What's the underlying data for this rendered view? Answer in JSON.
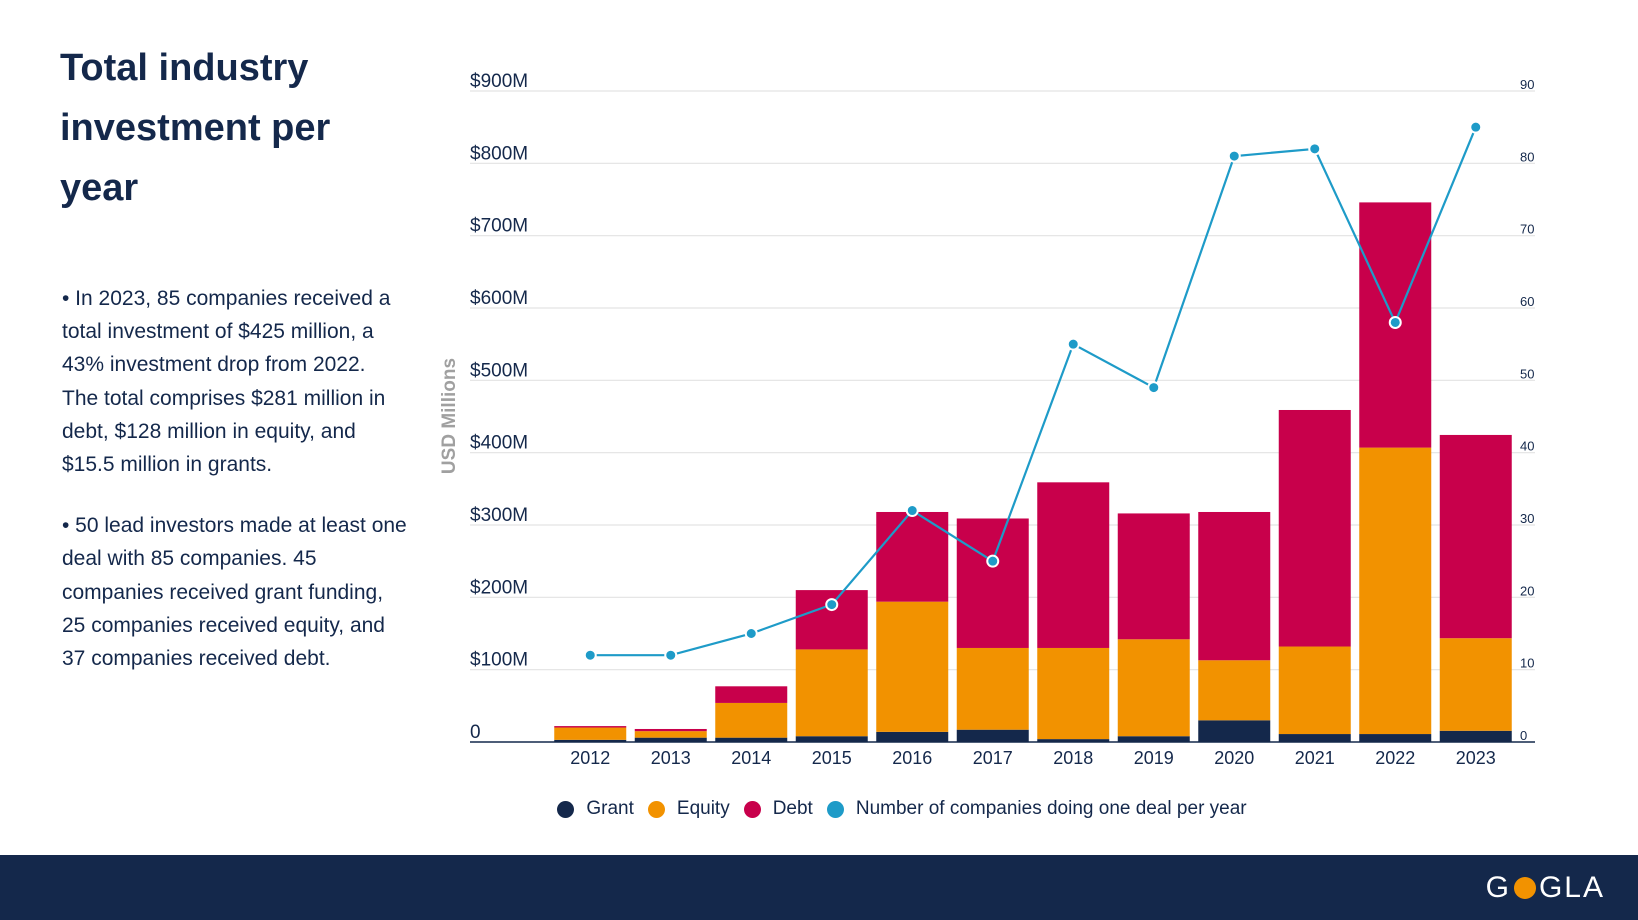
{
  "title": "Total industry investment per year",
  "bullets": [
    "• In 2023, 85 companies received a total investment of $425 million, a 43% investment drop from 2022. The total comprises $281 million in debt, $128 million in equity, and $15.5 million in grants.",
    "• 50 lead investors made at least one deal with 85 companies. 45 companies received grant funding, 25 companies received equity, and 37 companies received debt."
  ],
  "footer": {
    "logo_left": "G",
    "logo_right": "GLA",
    "logo_circle_color": "#f29200"
  },
  "chart_data": {
    "type": "bar",
    "stacked": true,
    "categories": [
      "2012",
      "2013",
      "2014",
      "2015",
      "2016",
      "2017",
      "2018",
      "2019",
      "2020",
      "2021",
      "2022",
      "2023"
    ],
    "series": [
      {
        "name": "Grant",
        "color": "#14284b",
        "axis": "left",
        "values": [
          3,
          6,
          6,
          8,
          14,
          17,
          4,
          8,
          30,
          11,
          11,
          15.5
        ]
      },
      {
        "name": "Equity",
        "color": "#f29200",
        "axis": "left",
        "values": [
          17,
          9,
          48,
          120,
          180,
          113,
          126,
          134,
          83,
          121,
          396,
          128
        ]
      },
      {
        "name": "Debt",
        "color": "#c8004b",
        "axis": "left",
        "values": [
          2,
          3,
          23,
          82,
          124,
          179,
          229,
          174,
          205,
          327,
          339,
          281
        ]
      },
      {
        "name": "Number of companies doing one deal per year",
        "type": "line",
        "color": "#1e9bc8",
        "axis": "right",
        "values": [
          12,
          12,
          15,
          19,
          32,
          25,
          55,
          49,
          81,
          82,
          58,
          85
        ]
      }
    ],
    "ylabel": "USD Millions",
    "ylim": [
      0,
      900
    ],
    "y_ticks": [
      0,
      100,
      200,
      300,
      400,
      500,
      600,
      700,
      800,
      900
    ],
    "y_tick_labels": [
      "0",
      "$100M",
      "$200M",
      "$300M",
      "$400M",
      "$500M",
      "$600M",
      "$700M",
      "$800M",
      "$900M"
    ],
    "y2lim": [
      0,
      90
    ],
    "y2_ticks": [
      0,
      10,
      20,
      30,
      40,
      50,
      60,
      70,
      80,
      90
    ],
    "y2_tick_labels": [
      "0",
      "10",
      "20",
      "30",
      "40",
      "50",
      "60",
      "70",
      "80",
      "90"
    ],
    "grid": true,
    "legend_position": "bottom"
  }
}
